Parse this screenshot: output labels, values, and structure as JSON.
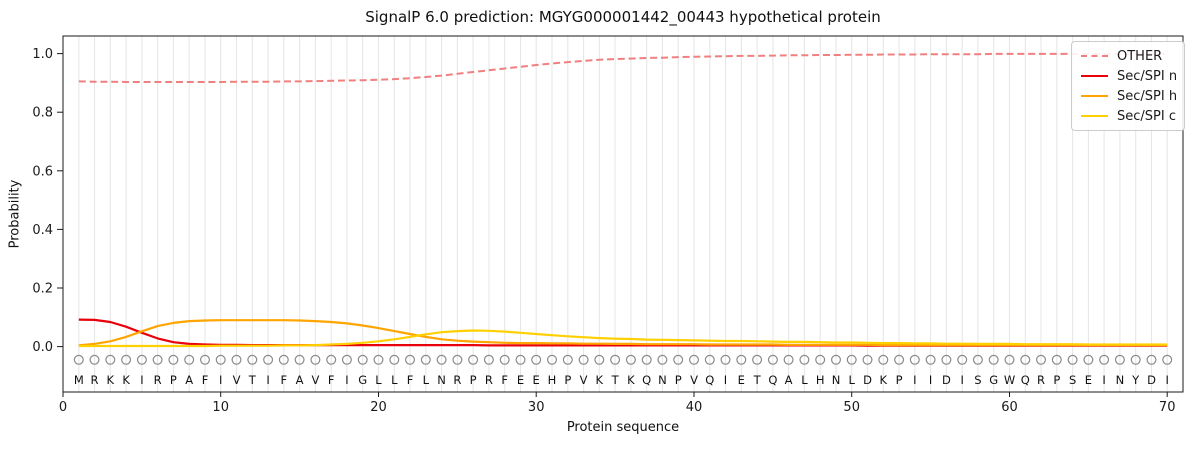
{
  "chart_data": {
    "type": "line",
    "title": "SignalP 6.0 prediction: MGYG000001442_00443 hypothetical protein",
    "xlabel": "Protein sequence",
    "ylabel": "Probability",
    "xlim": [
      0,
      71
    ],
    "ylim": [
      -0.155,
      1.06
    ],
    "xticks": [
      0,
      10,
      20,
      30,
      40,
      50,
      60,
      70
    ],
    "yticks": [
      0.0,
      0.2,
      0.4,
      0.6,
      0.8,
      1.0
    ],
    "ytick_labels": [
      "0.0",
      "0.2",
      "0.4",
      "0.6",
      "0.8",
      "1.0"
    ],
    "grid": {
      "vertical_per_residue": true,
      "color": "#e7e7e7",
      "horizontal": false
    },
    "legend": {
      "position": "upper right"
    },
    "sequence": "MRKKIRPAFIVTIFAVFIGLLFLNRPRFEEHPVKTKQNPVQIETQALHNLDKPIIDISGWQRPSEINYDI",
    "residue_markers": {
      "shape": "open-circle",
      "color": "#8a8a8a"
    },
    "x": [
      1,
      2,
      3,
      4,
      5,
      6,
      7,
      8,
      9,
      10,
      11,
      12,
      13,
      14,
      15,
      16,
      17,
      18,
      19,
      20,
      21,
      22,
      23,
      24,
      25,
      26,
      27,
      28,
      29,
      30,
      31,
      32,
      33,
      34,
      35,
      36,
      37,
      38,
      39,
      40,
      41,
      42,
      43,
      44,
      45,
      46,
      47,
      48,
      49,
      50,
      51,
      52,
      53,
      54,
      55,
      56,
      57,
      58,
      59,
      60,
      61,
      62,
      63,
      64,
      65,
      66,
      67,
      68,
      69,
      70
    ],
    "series": [
      {
        "name": "OTHER",
        "color": "#f08080",
        "linestyle": "dashed",
        "values": [
          0.905,
          0.904,
          0.904,
          0.903,
          0.903,
          0.903,
          0.903,
          0.903,
          0.903,
          0.903,
          0.904,
          0.904,
          0.904,
          0.905,
          0.905,
          0.906,
          0.907,
          0.908,
          0.909,
          0.911,
          0.913,
          0.916,
          0.92,
          0.925,
          0.931,
          0.937,
          0.943,
          0.949,
          0.955,
          0.961,
          0.966,
          0.971,
          0.975,
          0.979,
          0.981,
          0.983,
          0.985,
          0.986,
          0.988,
          0.989,
          0.99,
          0.991,
          0.992,
          0.992,
          0.993,
          0.994,
          0.994,
          0.995,
          0.995,
          0.996,
          0.996,
          0.997,
          0.997,
          0.997,
          0.998,
          0.998,
          0.998,
          0.998,
          0.999,
          0.999,
          0.999,
          0.999,
          0.999,
          0.999,
          0.999,
          0.999,
          0.999,
          0.999,
          0.999,
          0.999
        ]
      },
      {
        "name": "Sec/SPI n",
        "color": "#e8000b",
        "linestyle": "solid",
        "values": [
          0.092,
          0.091,
          0.084,
          0.068,
          0.047,
          0.028,
          0.015,
          0.009,
          0.007,
          0.006,
          0.006,
          0.005,
          0.005,
          0.005,
          0.005,
          0.005,
          0.005,
          0.005,
          0.005,
          0.005,
          0.005,
          0.005,
          0.005,
          0.005,
          0.005,
          0.005,
          0.004,
          0.004,
          0.004,
          0.004,
          0.004,
          0.004,
          0.004,
          0.004,
          0.004,
          0.004,
          0.004,
          0.004,
          0.004,
          0.004,
          0.004,
          0.004,
          0.004,
          0.004,
          0.004,
          0.004,
          0.004,
          0.004,
          0.004,
          0.004,
          0.003,
          0.003,
          0.003,
          0.003,
          0.003,
          0.003,
          0.003,
          0.003,
          0.003,
          0.003,
          0.003,
          0.003,
          0.003,
          0.003,
          0.003,
          0.003,
          0.003,
          0.003,
          0.003,
          0.003
        ]
      },
      {
        "name": "Sec/SPI h",
        "color": "#ffa500",
        "linestyle": "solid",
        "values": [
          0.004,
          0.009,
          0.018,
          0.033,
          0.052,
          0.07,
          0.081,
          0.087,
          0.089,
          0.09,
          0.09,
          0.09,
          0.09,
          0.09,
          0.089,
          0.087,
          0.084,
          0.079,
          0.072,
          0.063,
          0.053,
          0.043,
          0.033,
          0.025,
          0.02,
          0.017,
          0.015,
          0.013,
          0.012,
          0.012,
          0.011,
          0.011,
          0.01,
          0.01,
          0.009,
          0.009,
          0.008,
          0.008,
          0.008,
          0.008,
          0.007,
          0.007,
          0.007,
          0.007,
          0.007,
          0.006,
          0.006,
          0.006,
          0.006,
          0.006,
          0.006,
          0.005,
          0.005,
          0.005,
          0.005,
          0.005,
          0.005,
          0.005,
          0.005,
          0.005,
          0.005,
          0.005,
          0.005,
          0.005,
          0.005,
          0.005,
          0.005,
          0.005,
          0.005,
          0.005
        ]
      },
      {
        "name": "Sec/SPI c",
        "color": "#ffd000",
        "linestyle": "solid",
        "values": [
          0.002,
          0.002,
          0.002,
          0.002,
          0.002,
          0.002,
          0.002,
          0.002,
          0.002,
          0.003,
          0.003,
          0.003,
          0.003,
          0.004,
          0.004,
          0.005,
          0.007,
          0.009,
          0.013,
          0.018,
          0.025,
          0.033,
          0.042,
          0.049,
          0.053,
          0.055,
          0.054,
          0.051,
          0.047,
          0.043,
          0.039,
          0.035,
          0.032,
          0.029,
          0.027,
          0.026,
          0.024,
          0.023,
          0.022,
          0.021,
          0.02,
          0.019,
          0.019,
          0.018,
          0.017,
          0.016,
          0.016,
          0.015,
          0.014,
          0.014,
          0.013,
          0.012,
          0.012,
          0.011,
          0.011,
          0.01,
          0.01,
          0.009,
          0.009,
          0.009,
          0.008,
          0.008,
          0.008,
          0.008,
          0.007,
          0.007,
          0.007,
          0.007,
          0.007,
          0.007
        ]
      }
    ]
  }
}
